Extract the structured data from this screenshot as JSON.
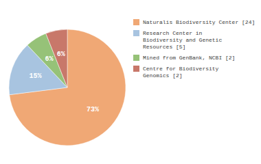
{
  "chart_data": {
    "type": "pie",
    "categories": [
      "Naturalis Biodiversity Center [24]",
      "Research Center in\nBiodiversity and Genetic\nResources [5]",
      "Mined from GenBank, NCBI [2]",
      "Centre for Biodiversity\nGenomics [2]"
    ],
    "values": [
      73,
      15,
      6,
      6
    ],
    "value_labels": [
      "73%",
      "15%",
      "6%",
      "6%"
    ],
    "colors": [
      "#f0a875",
      "#a8c4e0",
      "#96c278",
      "#c8786a"
    ],
    "data_labels": true,
    "legend": "right"
  }
}
